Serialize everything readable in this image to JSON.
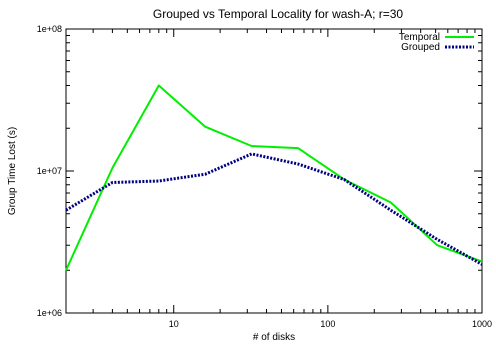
{
  "chart_data": {
    "type": "line",
    "title": "Grouped vs Temporal Locality for wash-A; r=30",
    "xlabel": "# of disks",
    "ylabel": "Group Time Lost (s)",
    "xscale": "log",
    "yscale": "log",
    "xlim": [
      2,
      1000
    ],
    "ylim": [
      1000000,
      100000000
    ],
    "xticks": [
      10,
      100,
      1000
    ],
    "xtick_labels": [
      "10",
      "100",
      "1000"
    ],
    "yticks": [
      1000000,
      10000000,
      100000000
    ],
    "ytick_labels": [
      "1e+06",
      "1e+07",
      "1e+08"
    ],
    "grid": false,
    "legend_position": "top-right",
    "series": [
      {
        "name": "Temporal",
        "color": "#00ee00",
        "style": "solid",
        "x": [
          2,
          4,
          8,
          16,
          32,
          64,
          128,
          256,
          512,
          1000
        ],
        "y": [
          2000000,
          10500000,
          40000000,
          20500000,
          15000000,
          14500000,
          8700000,
          6000000,
          3000000,
          2300000
        ]
      },
      {
        "name": "Grouped",
        "color": "#000080",
        "style": "dotted",
        "x": [
          2,
          4,
          8,
          16,
          32,
          64,
          128,
          256,
          512,
          1000
        ],
        "y": [
          5300000,
          8300000,
          8500000,
          9500000,
          13200000,
          11200000,
          8700000,
          5300000,
          3300000,
          2200000
        ]
      }
    ]
  }
}
